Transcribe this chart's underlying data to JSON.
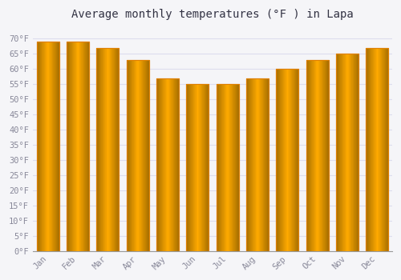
{
  "title": "Average monthly temperatures (°F ) in Lapa",
  "months": [
    "Jan",
    "Feb",
    "Mar",
    "Apr",
    "May",
    "Jun",
    "Jul",
    "Aug",
    "Sep",
    "Oct",
    "Nov",
    "Dec"
  ],
  "values": [
    69,
    69,
    67,
    63,
    57,
    55,
    55,
    57,
    60,
    63,
    65,
    67
  ],
  "bar_color_face": "#FFAA00",
  "bar_color_edge": "#E08000",
  "bar_color_gradient_left": "#F0A000",
  "bar_color_gradient_right": "#FFD060",
  "ylim": [
    0,
    74
  ],
  "yticks": [
    0,
    5,
    10,
    15,
    20,
    25,
    30,
    35,
    40,
    45,
    50,
    55,
    60,
    65,
    70
  ],
  "ytick_labels": [
    "0°F",
    "5°F",
    "10°F",
    "15°F",
    "20°F",
    "25°F",
    "30°F",
    "35°F",
    "40°F",
    "45°F",
    "50°F",
    "55°F",
    "60°F",
    "65°F",
    "70°F"
  ],
  "background_color": "#F5F5F8",
  "plot_bg_color": "#F5F5F8",
  "grid_color": "#DDDDEE",
  "title_fontsize": 10,
  "tick_fontsize": 7.5,
  "bar_width": 0.75,
  "tick_color": "#888899"
}
